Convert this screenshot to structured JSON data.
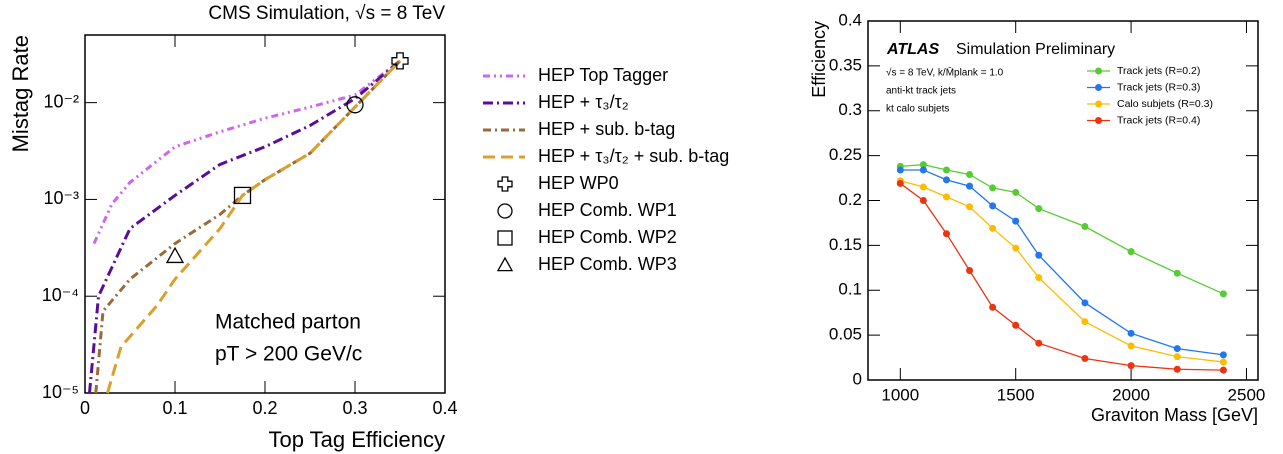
{
  "chart_data": [
    {
      "type": "line",
      "title": "CMS Simulation, √s = 8 TeV",
      "x_label": "Top Tag Efficiency",
      "y_label": "Mistag Rate",
      "log_y": true,
      "xlim": [
        0,
        0.4
      ],
      "ylim": [
        1e-05,
        0.05
      ],
      "xticks": [
        0,
        0.1,
        0.2,
        0.3,
        0.4
      ],
      "yticks": [
        {
          "value": 1e-05,
          "label": "10⁻⁵"
        },
        {
          "value": 0.0001,
          "label": "10⁻⁴"
        },
        {
          "value": 0.001,
          "label": "10⁻³"
        },
        {
          "value": 0.01,
          "label": "10⁻²"
        }
      ],
      "annotations": [
        "Matched parton",
        "pT > 200 GeV/c"
      ],
      "series": [
        {
          "name": "HEP Top Tagger",
          "color": "#cc66ee",
          "dash": "7 4 2 4 2 4",
          "x": [
            0.01,
            0.03,
            0.05,
            0.1,
            0.15,
            0.2,
            0.25,
            0.3,
            0.35
          ],
          "values": [
            0.00035,
            0.0009,
            0.0015,
            0.0035,
            0.005,
            0.0069,
            0.009,
            0.012,
            0.027
          ]
        },
        {
          "name": "HEP + τ₃/τ₂",
          "color": "#5a0d9a",
          "dash": "10 4 2 4",
          "x": [
            0.005,
            0.015,
            0.05,
            0.1,
            0.15,
            0.2,
            0.25,
            0.3,
            0.35
          ],
          "values": [
            1e-05,
            0.0001,
            0.0005,
            0.0011,
            0.0023,
            0.0035,
            0.0058,
            0.011,
            0.027
          ]
        },
        {
          "name": "HEP + sub. b-tag",
          "color": "#9a6a3a",
          "dash": "8 4 2 4",
          "x": [
            0.012,
            0.02,
            0.05,
            0.1,
            0.15,
            0.175,
            0.2,
            0.25,
            0.3,
            0.35
          ],
          "values": [
            1e-05,
            7e-05,
            0.00015,
            0.00035,
            0.0007,
            0.0011,
            0.0016,
            0.003,
            0.009,
            0.027
          ]
        },
        {
          "name": "HEP + τ₃/τ₂ + sub. b-tag",
          "color": "#d9a030",
          "dash": "12 6",
          "x": [
            0.025,
            0.04,
            0.08,
            0.1,
            0.15,
            0.175,
            0.2,
            0.25,
            0.3,
            0.35
          ],
          "values": [
            1e-05,
            3e-05,
            8e-05,
            0.00015,
            0.0005,
            0.0011,
            0.0016,
            0.003,
            0.009,
            0.027
          ]
        },
        {
          "name": "HEP WP0",
          "marker": "cross",
          "color": "#000000",
          "x": [
            0.35
          ],
          "values": [
            0.027
          ]
        },
        {
          "name": "HEP Comb. WP1",
          "marker": "circle",
          "color": "#000000",
          "x": [
            0.3
          ],
          "values": [
            0.0095
          ]
        },
        {
          "name": "HEP Comb. WP2",
          "marker": "square",
          "color": "#000000",
          "x": [
            0.175
          ],
          "values": [
            0.0011
          ]
        },
        {
          "name": "HEP Comb. WP3",
          "marker": "triangle",
          "color": "#000000",
          "x": [
            0.1
          ],
          "values": [
            0.00026
          ]
        }
      ]
    },
    {
      "type": "line",
      "title": "ATLAS",
      "subtitle": "Simulation Preliminary",
      "x_label": "Graviton Mass [GeV]",
      "y_label": "Efficiency",
      "xlim": [
        860,
        2550
      ],
      "ylim": [
        0,
        0.4
      ],
      "xticks": [
        1000,
        1500,
        2000,
        2500
      ],
      "yticks": [
        0,
        0.05,
        0.1,
        0.15,
        0.2,
        0.25,
        0.3,
        0.35,
        0.4
      ],
      "annotations": [
        "√s = 8 TeV, k/M̄plank = 1.0",
        "anti-kt track jets",
        "kt calo subjets"
      ],
      "x": [
        1000,
        1100,
        1200,
        1300,
        1400,
        1500,
        1600,
        1800,
        2000,
        2200,
        2400
      ],
      "series": [
        {
          "name": "Track jets (R=0.2)",
          "color": "#55cc33",
          "values": [
            0.238,
            0.24,
            0.234,
            0.229,
            0.214,
            0.209,
            0.191,
            0.171,
            0.143,
            0.119,
            0.096
          ]
        },
        {
          "name": "Track jets (R=0.3)",
          "color": "#2277ee",
          "values": [
            0.234,
            0.234,
            0.223,
            0.216,
            0.194,
            0.177,
            0.139,
            0.086,
            0.052,
            0.035,
            0.028
          ]
        },
        {
          "name": "Calo subjets (R=0.3)",
          "color": "#ffbb00",
          "values": [
            0.222,
            0.215,
            0.204,
            0.193,
            0.169,
            0.147,
            0.114,
            0.065,
            0.038,
            0.026,
            0.02
          ]
        },
        {
          "name": "Track jets (R=0.4)",
          "color": "#ee3311",
          "values": [
            0.219,
            0.2,
            0.163,
            0.122,
            0.081,
            0.061,
            0.041,
            0.024,
            0.016,
            0.012,
            0.011
          ]
        }
      ]
    }
  ]
}
